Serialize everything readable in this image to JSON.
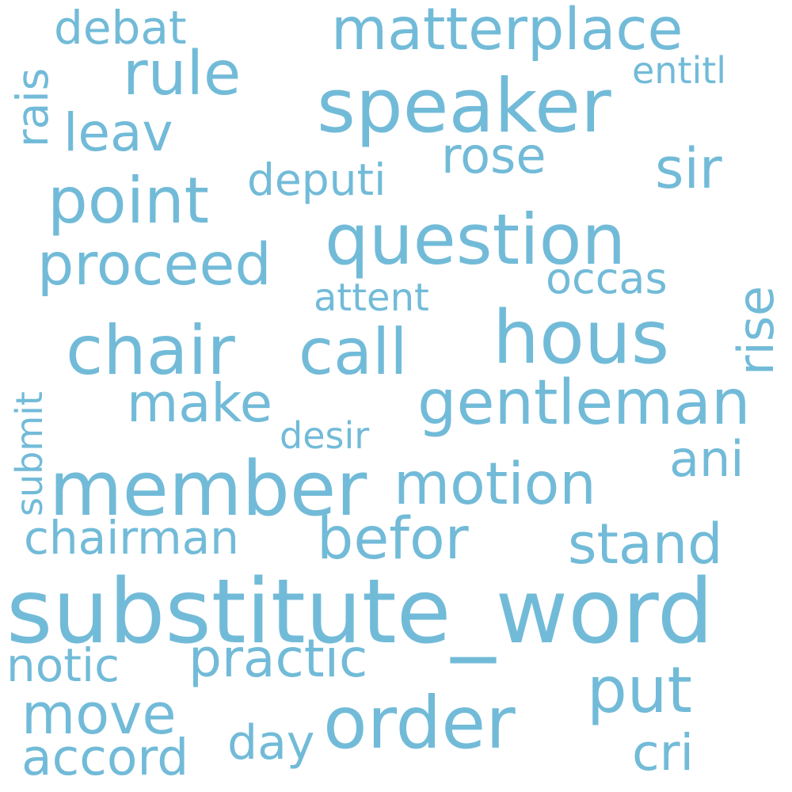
{
  "word_color": "#72bbd8",
  "background_color": "#ffffff",
  "words": {
    "substitute_word": "substitute_word",
    "member": "member",
    "speaker": "speaker",
    "hous": "hous",
    "order": "order",
    "question": "question",
    "chair": "chair",
    "matterplace": "matterplace",
    "rule": "rule",
    "point": "point",
    "call": "call",
    "gentleman": "gentleman",
    "motion": "motion",
    "put": "put",
    "proceed": "proceed",
    "befor": "befor",
    "practic": "practic",
    "stand": "stand",
    "make": "make",
    "move": "move",
    "sir": "sir",
    "rose": "rose",
    "leav": "leav",
    "ani": "ani",
    "accord": "accord",
    "cri": "cri",
    "notic": "notic",
    "chairman": "chairman",
    "day": "day",
    "rise": "rise",
    "deputi": "deputi",
    "occas": "occas",
    "debat": "debat",
    "rais": "rais",
    "attent": "attent",
    "desir": "desir",
    "entitl": "entitl",
    "submit": "submit"
  }
}
